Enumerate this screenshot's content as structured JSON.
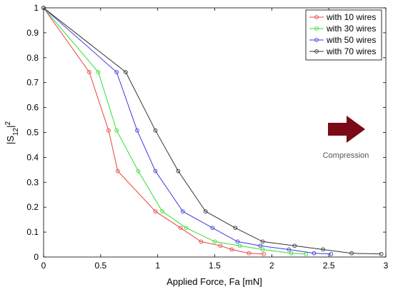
{
  "chart_data": {
    "type": "line",
    "xlabel": "Applied Force, Fa [mN]",
    "ylabel": {
      "base": "|S",
      "sub": "12",
      "close": "|",
      "sup": "2"
    },
    "xlim": [
      0,
      3
    ],
    "ylim": [
      0,
      1
    ],
    "xticks": [
      "0",
      "0.5",
      "1",
      "1.5",
      "2",
      "2.5",
      "3"
    ],
    "yticks": [
      "0",
      "0.1",
      "0.2",
      "0.3",
      "0.4",
      "0.5",
      "0.6",
      "0.7",
      "0.8",
      "0.9",
      "1"
    ],
    "grid": false,
    "legend_position": "top-right",
    "series": [
      {
        "name": "with 10 wires",
        "color": "#e8413b",
        "x": [
          0,
          0.4,
          0.57,
          0.65,
          0.98,
          1.2,
          1.38,
          1.55,
          1.65,
          1.8,
          1.93
        ],
        "y": [
          1,
          0.742,
          0.508,
          0.345,
          0.183,
          0.117,
          0.062,
          0.045,
          0.03,
          0.015,
          0.012
        ]
      },
      {
        "name": "with 30 wires",
        "color": "#33dd33",
        "x": [
          0,
          0.48,
          0.64,
          0.83,
          1.04,
          1.25,
          1.5,
          1.72,
          1.92,
          2.17,
          2.3
        ],
        "y": [
          1,
          0.742,
          0.508,
          0.345,
          0.183,
          0.117,
          0.062,
          0.045,
          0.03,
          0.015,
          0.012
        ]
      },
      {
        "name": "with 50 wires",
        "color": "#3b3bdd",
        "x": [
          0,
          0.64,
          0.82,
          0.98,
          1.22,
          1.48,
          1.7,
          1.9,
          2.15,
          2.37,
          2.52
        ],
        "y": [
          1,
          0.742,
          0.508,
          0.345,
          0.183,
          0.117,
          0.062,
          0.045,
          0.03,
          0.015,
          0.012
        ]
      },
      {
        "name": "with 70 wires",
        "color": "#333333",
        "x": [
          0,
          0.72,
          0.98,
          1.18,
          1.42,
          1.68,
          1.92,
          2.2,
          2.45,
          2.7,
          2.96
        ],
        "y": [
          1,
          0.742,
          0.508,
          0.345,
          0.183,
          0.117,
          0.062,
          0.045,
          0.03,
          0.015,
          0.012
        ]
      }
    ],
    "annotation": {
      "text": "Compression",
      "arrow_direction": "right",
      "arrow_color": "#7a0a16"
    }
  }
}
